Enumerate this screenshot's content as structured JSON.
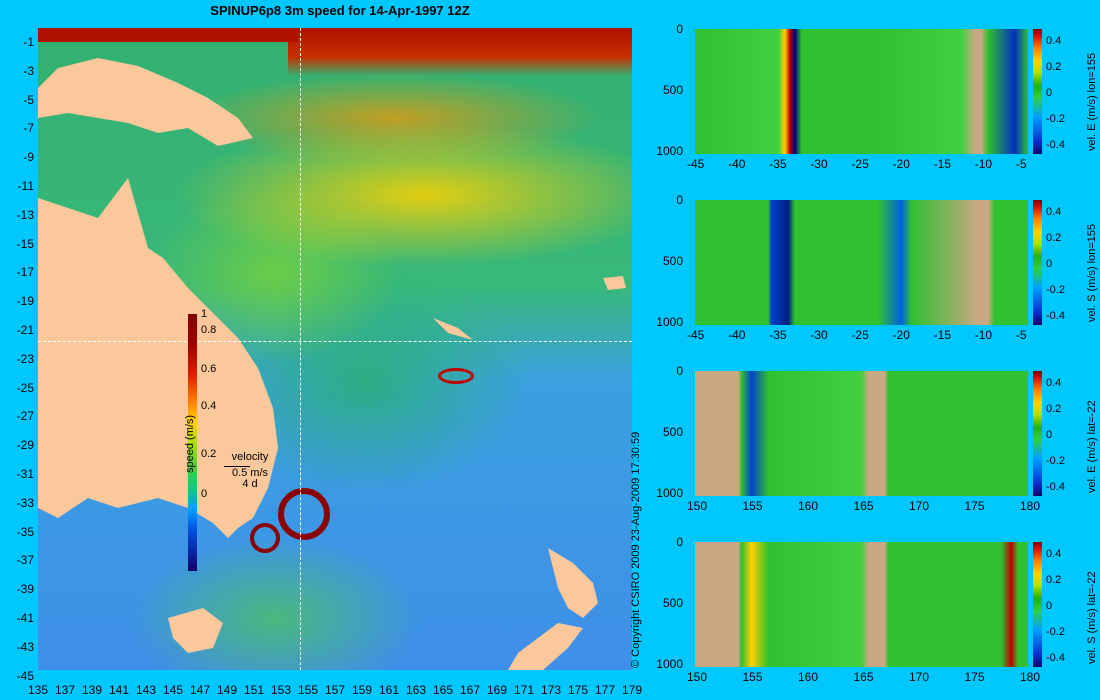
{
  "title": "SPINUP6p8 3m speed for 14-Apr-1997 12Z",
  "map": {
    "x_ticks": [
      "135",
      "137",
      "139",
      "141",
      "143",
      "145",
      "147",
      "149",
      "151",
      "153",
      "155",
      "157",
      "159",
      "161",
      "163",
      "165",
      "167",
      "169",
      "171",
      "173",
      "175",
      "177",
      "179"
    ],
    "y_ticks": [
      "-1",
      "-3",
      "-5",
      "-7",
      "-9",
      "-11",
      "-13",
      "-15",
      "-17",
      "-19",
      "-21",
      "-23",
      "-25",
      "-27",
      "-29",
      "-31",
      "-33",
      "-35",
      "-37",
      "-39",
      "-41",
      "-43",
      "-45"
    ],
    "section_lon": "155",
    "section_lat": "-22",
    "colorbar": {
      "label": "speed (m/s)",
      "ticks": [
        "1",
        "0.8",
        "0.6",
        "0.4",
        "0.2",
        "0"
      ]
    },
    "velocity_legend": {
      "title": "velocity",
      "scale": "0.5 m/s",
      "time": "4 d"
    },
    "colors": {
      "land": "#fac89b",
      "background": "#00c8ff",
      "strong_current": "#b01000"
    }
  },
  "copyright": "© Copyright CSIRO 2009   23-Aug-2009 17:30:59",
  "panels": [
    {
      "label": "vel. E (m/s) lon=155",
      "x_ticks": [
        "-45",
        "-40",
        "-35",
        "-30",
        "-25",
        "-20",
        "-15",
        "-10",
        "-5"
      ],
      "y_ticks": [
        "0",
        "500",
        "1000"
      ],
      "cbar_ticks": [
        "0.4",
        "0.2",
        "0",
        "-0.2",
        "-0.4"
      ]
    },
    {
      "label": "vel. S (m/s) lon=155",
      "x_ticks": [
        "-45",
        "-40",
        "-35",
        "-30",
        "-25",
        "-20",
        "-15",
        "-10",
        "-5"
      ],
      "y_ticks": [
        "0",
        "500",
        "1000"
      ],
      "cbar_ticks": [
        "0.4",
        "0.2",
        "0",
        "-0.2",
        "-0.4"
      ]
    },
    {
      "label": "vel. E (m/s) lat=-22",
      "x_ticks": [
        "150",
        "155",
        "160",
        "165",
        "170",
        "175",
        "180"
      ],
      "y_ticks": [
        "0",
        "500",
        "1000"
      ],
      "cbar_ticks": [
        "0.4",
        "0.2",
        "0",
        "-0.2",
        "-0.4"
      ]
    },
    {
      "label": "vel. S (m/s) lat=-22",
      "x_ticks": [
        "150",
        "155",
        "160",
        "165",
        "170",
        "175",
        "180"
      ],
      "y_ticks": [
        "0",
        "500",
        "1000"
      ],
      "cbar_ticks": [
        "0.4",
        "0.2",
        "0",
        "-0.2",
        "-0.4"
      ]
    }
  ]
}
